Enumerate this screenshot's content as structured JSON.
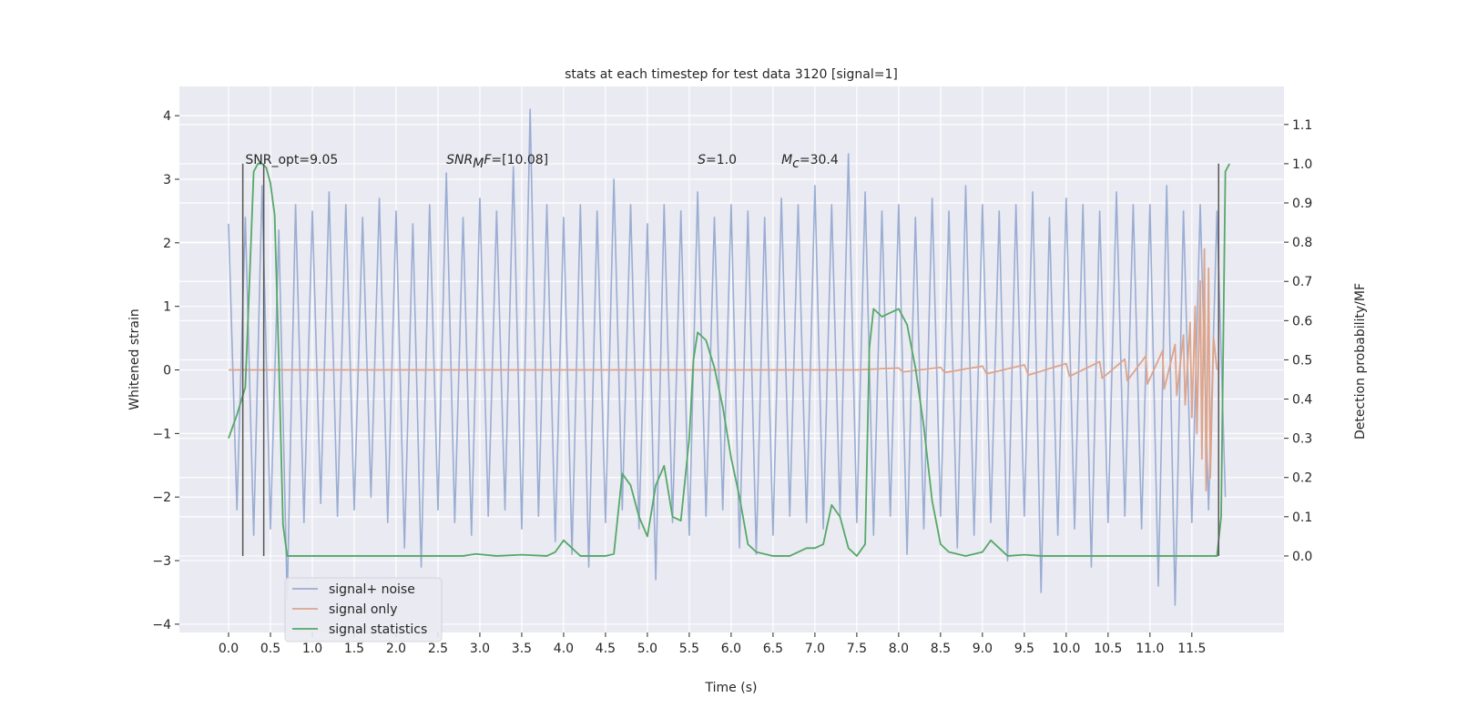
{
  "chart_data": {
    "type": "line",
    "title": "stats at each timestep for test data 3120 [signal=1]",
    "xlabel": "Time (s)",
    "ylabel": "Whitened strain",
    "y2label": "Detection probability/MF",
    "xlim": [
      -0.587,
      12.6
    ],
    "ylim": [
      -4.13,
      4.46
    ],
    "y2lim": [
      -0.195,
      1.197
    ],
    "xticks": [
      {
        "value": 0,
        "label": "0.0"
      },
      0.5,
      {
        "value": 1,
        "label": "1.0"
      },
      1.5,
      {
        "value": 2,
        "label": "2.0"
      },
      2.5,
      {
        "value": 3,
        "label": "3.0"
      },
      3.5,
      {
        "value": 4,
        "label": "4.0"
      },
      4.5,
      {
        "value": 5,
        "label": "5.0"
      },
      5.5,
      {
        "value": 6,
        "label": "6.0"
      },
      6.5,
      {
        "value": 7,
        "label": "7.0"
      },
      7.5,
      {
        "value": 8,
        "label": "8.0"
      },
      8.5,
      {
        "value": 9,
        "label": "9.0"
      },
      9.5,
      {
        "value": 10,
        "label": "10.0"
      },
      10.5,
      {
        "value": 11,
        "label": "11.0"
      },
      11.5
    ],
    "yticks": [
      {
        "value": -4,
        "label": "−4"
      },
      {
        "value": -3,
        "label": "−3"
      },
      {
        "value": -2,
        "label": "−2"
      },
      {
        "value": -1,
        "label": "−1"
      },
      0,
      1,
      2,
      3,
      4
    ],
    "y2ticks": [
      {
        "value": 0,
        "label": "0.0"
      },
      0.1,
      0.2,
      0.3,
      0.4,
      0.5,
      0.6,
      0.7,
      0.8,
      0.9,
      {
        "value": 1,
        "label": "1.0"
      },
      1.1
    ],
    "grid": true,
    "legend": "lower left",
    "series": [
      {
        "name": "signal+ noise",
        "color": "#9aadd2",
        "x": [
          0.0,
          0.1,
          0.2,
          0.3,
          0.4,
          0.5,
          0.6,
          0.7,
          0.8,
          0.9,
          1.0,
          1.1,
          1.2,
          1.3,
          1.4,
          1.5,
          1.6,
          1.7,
          1.8,
          1.9,
          2.0,
          2.1,
          2.2,
          2.3,
          2.4,
          2.5,
          2.6,
          2.7,
          2.8,
          2.9,
          3.0,
          3.1,
          3.2,
          3.3,
          3.4,
          3.5,
          3.6,
          3.7,
          3.8,
          3.9,
          4.0,
          4.1,
          4.2,
          4.3,
          4.4,
          4.5,
          4.6,
          4.7,
          4.8,
          4.9,
          5.0,
          5.1,
          5.2,
          5.3,
          5.4,
          5.5,
          5.6,
          5.7,
          5.8,
          5.9,
          6.0,
          6.1,
          6.2,
          6.3,
          6.4,
          6.5,
          6.6,
          6.7,
          6.8,
          6.9,
          7.0,
          7.1,
          7.2,
          7.3,
          7.4,
          7.5,
          7.6,
          7.7,
          7.8,
          7.9,
          8.0,
          8.1,
          8.2,
          8.3,
          8.4,
          8.5,
          8.6,
          8.7,
          8.8,
          8.9,
          9.0,
          9.1,
          9.2,
          9.3,
          9.4,
          9.5,
          9.6,
          9.7,
          9.8,
          9.9,
          10.0,
          10.1,
          10.2,
          10.3,
          10.4,
          10.5,
          10.6,
          10.7,
          10.8,
          10.9,
          11.0,
          11.1,
          11.2,
          11.3,
          11.4,
          11.5,
          11.6,
          11.7,
          11.8,
          11.9
        ],
        "values": [
          2.3,
          -2.2,
          2.4,
          -2.6,
          2.9,
          -2.5,
          2.2,
          -3.6,
          2.6,
          -2.4,
          2.5,
          -2.1,
          2.8,
          -2.3,
          2.6,
          -2.2,
          2.4,
          -2.0,
          2.7,
          -2.4,
          2.5,
          -2.8,
          2.3,
          -3.1,
          2.6,
          -2.2,
          3.1,
          -2.4,
          2.4,
          -2.6,
          2.7,
          -2.3,
          2.5,
          -2.2,
          3.2,
          -2.5,
          4.1,
          -2.3,
          2.6,
          -2.7,
          2.4,
          -2.9,
          2.6,
          -3.1,
          2.5,
          -2.4,
          3.0,
          -2.2,
          2.6,
          -2.5,
          2.3,
          -3.3,
          2.6,
          -2.4,
          2.5,
          -2.6,
          2.8,
          -2.3,
          2.4,
          -2.2,
          2.6,
          -2.8,
          2.5,
          -2.9,
          2.4,
          -2.6,
          2.7,
          -2.3,
          2.6,
          -2.4,
          2.9,
          -2.5,
          2.6,
          -2.3,
          3.4,
          -2.4,
          2.8,
          -2.6,
          2.5,
          -2.3,
          2.6,
          -2.9,
          2.4,
          -2.5,
          2.7,
          -2.3,
          2.5,
          -2.8,
          2.9,
          -2.6,
          2.6,
          -2.4,
          2.5,
          -3.0,
          2.6,
          -2.3,
          2.8,
          -3.5,
          2.4,
          -2.6,
          2.7,
          -2.5,
          2.6,
          -3.1,
          2.5,
          -2.4,
          2.8,
          -2.3,
          2.6,
          -2.5,
          2.6,
          -3.4,
          2.9,
          -3.7,
          2.5,
          -2.4,
          2.6,
          -2.2,
          2.5,
          -2.0
        ]
      },
      {
        "name": "signal only",
        "color": "#dda48c",
        "x": [
          0.0,
          7.5,
          8.0,
          8.05,
          8.5,
          8.55,
          9.0,
          9.05,
          9.5,
          9.55,
          10.0,
          10.04,
          10.4,
          10.43,
          10.7,
          10.73,
          10.95,
          10.97,
          11.15,
          11.17,
          11.3,
          11.32,
          11.4,
          11.42,
          11.48,
          11.5,
          11.54,
          11.56,
          11.6,
          11.62,
          11.65,
          11.67,
          11.7,
          11.72,
          11.76,
          11.8
        ],
        "values": [
          0,
          0,
          0.03,
          -0.03,
          0.04,
          -0.04,
          0.06,
          -0.06,
          0.08,
          -0.08,
          0.1,
          -0.1,
          0.13,
          -0.13,
          0.17,
          -0.17,
          0.22,
          -0.22,
          0.3,
          -0.3,
          0.4,
          -0.4,
          0.55,
          -0.55,
          0.75,
          -0.75,
          1.0,
          -1.0,
          1.4,
          -1.4,
          1.9,
          -1.9,
          1.6,
          -1.7,
          0.5,
          0
        ]
      },
      {
        "name": "signal statistics",
        "color": "#55a868",
        "axis": "y2",
        "x": [
          0.0,
          0.1,
          0.2,
          0.25,
          0.3,
          0.35,
          0.4,
          0.45,
          0.5,
          0.55,
          0.6,
          0.65,
          0.7,
          1.0,
          2.0,
          2.8,
          2.95,
          3.2,
          3.5,
          3.8,
          3.9,
          4.0,
          4.1,
          4.2,
          4.5,
          4.6,
          4.7,
          4.8,
          4.9,
          5.0,
          5.1,
          5.2,
          5.3,
          5.4,
          5.5,
          5.55,
          5.6,
          5.7,
          5.8,
          5.9,
          6.0,
          6.1,
          6.2,
          6.3,
          6.5,
          6.7,
          6.8,
          6.9,
          7.0,
          7.1,
          7.2,
          7.3,
          7.4,
          7.5,
          7.6,
          7.65,
          7.7,
          7.8,
          7.9,
          8.0,
          8.1,
          8.2,
          8.3,
          8.4,
          8.5,
          8.6,
          8.8,
          9.0,
          9.1,
          9.2,
          9.3,
          9.5,
          9.7,
          11.0,
          11.8,
          11.85,
          11.9,
          11.95
        ],
        "values": [
          0.3,
          0.36,
          0.43,
          0.7,
          0.98,
          1.0,
          1.0,
          0.99,
          0.95,
          0.87,
          0.5,
          0.08,
          0.0,
          0.0,
          0.0,
          0.0,
          0.005,
          0.0,
          0.003,
          0.0,
          0.01,
          0.04,
          0.02,
          0.0,
          0.0,
          0.005,
          0.21,
          0.18,
          0.1,
          0.05,
          0.18,
          0.23,
          0.1,
          0.09,
          0.3,
          0.5,
          0.57,
          0.55,
          0.48,
          0.38,
          0.25,
          0.15,
          0.03,
          0.01,
          0.0,
          0.0,
          0.01,
          0.02,
          0.02,
          0.03,
          0.13,
          0.1,
          0.02,
          0.0,
          0.03,
          0.53,
          0.63,
          0.61,
          0.62,
          0.63,
          0.59,
          0.48,
          0.33,
          0.14,
          0.03,
          0.01,
          0.0,
          0.01,
          0.04,
          0.02,
          0.0,
          0.003,
          0.0,
          0.0,
          0.0,
          0.1,
          0.98,
          1.0
        ]
      }
    ],
    "vlines": {
      "x": [
        0.17,
        0.42,
        11.82
      ],
      "ymin": 0,
      "ymax": 1.0,
      "axis": "y2",
      "color": "#555555"
    },
    "annotations": [
      {
        "x": 0.2,
        "y": 3.24,
        "parts": [
          {
            "text": "SNR_opt=9.05"
          }
        ]
      },
      {
        "x": 2.6,
        "y": 3.24,
        "parts": [
          {
            "text": "SNR",
            "italic": true
          },
          {
            "text": "M",
            "italic": true,
            "sub": true
          },
          {
            "text": "F",
            "italic": true
          },
          {
            "text": "=[10.08]"
          }
        ]
      },
      {
        "x": 5.6,
        "y": 3.24,
        "parts": [
          {
            "text": "S",
            "italic": true
          },
          {
            "text": "=1.0"
          }
        ]
      },
      {
        "x": 6.6,
        "y": 3.24,
        "parts": [
          {
            "text": "M",
            "italic": true
          },
          {
            "text": "c",
            "italic": true,
            "sub": true
          },
          {
            "text": "=30.4"
          }
        ]
      }
    ]
  }
}
